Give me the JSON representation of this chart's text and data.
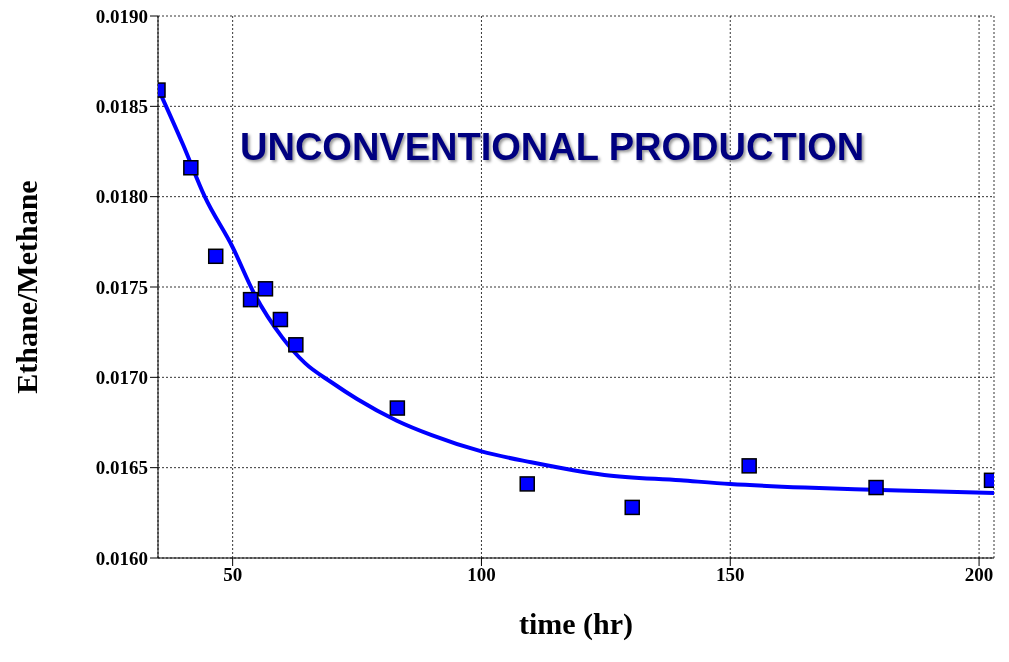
{
  "chart_data": {
    "type": "scatter",
    "xlabel": "time (hr)",
    "ylabel": "Ethane/Methane",
    "annotations": [
      "UNCONVENTIONAL PRODUCTION"
    ],
    "xlim": [
      35,
      203
    ],
    "xticks": [
      50,
      100,
      150,
      200
    ],
    "ylim": [
      0.016,
      0.019
    ],
    "yticks": [
      {
        "value": 0.016,
        "label": "0.0160"
      },
      {
        "value": 0.0165,
        "label": "0.0165"
      },
      {
        "value": 0.017,
        "label": "0.0170"
      },
      {
        "value": 0.0175,
        "label": "0.0175"
      },
      {
        "value": 0.018,
        "label": "0.0180"
      },
      {
        "value": 0.0185,
        "label": "0.0185"
      },
      {
        "value": 0.019,
        "label": "0.0190"
      }
    ],
    "grid": true,
    "legend": false,
    "marker": "square",
    "series": [
      {
        "color": "#0000ff",
        "x": [
          35,
          41.6,
          46.6,
          53.6,
          56.6,
          59.6,
          62.7,
          83.1,
          109.2,
          130.3,
          153.8,
          179.3,
          202.5
        ],
        "values": [
          0.01859,
          0.01816,
          0.01767,
          0.01743,
          0.01749,
          0.01732,
          0.01718,
          0.01683,
          0.01641,
          0.01628,
          0.01651,
          0.01639,
          0.01643
        ]
      },
      {
        "type": "line",
        "color": "#0000ff",
        "marker": "none",
        "line_style": "solid",
        "x": [
          35,
          40,
          44.4,
          50,
          54.4,
          60,
          64.5,
          70,
          75,
          83,
          90,
          100,
          110,
          124.7,
          140,
          150,
          165,
          175,
          190,
          203
        ],
        "values": [
          0.0186,
          0.01829,
          0.018,
          0.01772,
          0.01746,
          0.01722,
          0.01708,
          0.01697,
          0.01688,
          0.01676,
          0.01668,
          0.01659,
          0.01653,
          0.01646,
          0.01643,
          0.01641,
          0.01639,
          0.01638,
          0.01637,
          0.01636
        ]
      }
    ]
  }
}
